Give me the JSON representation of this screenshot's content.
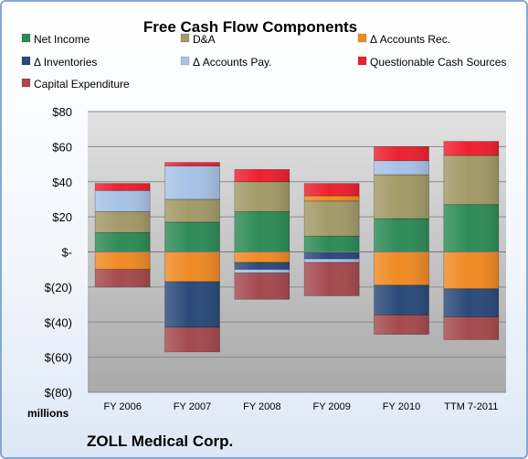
{
  "chart_data": {
    "type": "bar",
    "stacked": true,
    "title": "Free Cash Flow Components",
    "unit_label": "millions",
    "caption": "ZOLL Medical Corp.",
    "ylim": [
      -80,
      80
    ],
    "yticks": [
      {
        "value": 80,
        "label": "$80"
      },
      {
        "value": 60,
        "label": "$60"
      },
      {
        "value": 40,
        "label": "$40"
      },
      {
        "value": 20,
        "label": "$20"
      },
      {
        "value": 0,
        "label": "$-"
      },
      {
        "value": -20,
        "label": "$(20)"
      },
      {
        "value": -40,
        "label": "$(40)"
      },
      {
        "value": -60,
        "label": "$(60)"
      },
      {
        "value": -80,
        "label": "$(80)"
      }
    ],
    "grid": true,
    "legend_position": "top",
    "categories": [
      "FY 2006",
      "FY 2007",
      "FY 2008",
      "FY 2009",
      "FY 2010",
      "TTM 7-2011"
    ],
    "series": [
      {
        "name": "Net Income",
        "color": "#2e8b57",
        "values": [
          11,
          17,
          23,
          9,
          19,
          27
        ]
      },
      {
        "name": "D&A",
        "color": "#a39a68",
        "values": [
          12,
          13,
          17,
          20,
          25,
          28
        ]
      },
      {
        "name": "Δ Accounts Rec.",
        "color": "#f08a24",
        "values": [
          -10,
          -17,
          -6,
          3,
          -19,
          -21
        ]
      },
      {
        "name": "Δ Inventories",
        "color": "#2b4a7a",
        "values": [
          0,
          -26,
          -4,
          -4,
          -17,
          -16
        ]
      },
      {
        "name": "Δ Accounts Pay.",
        "color": "#a7c2e6",
        "values": [
          12,
          19,
          -2,
          -2,
          8,
          0
        ]
      },
      {
        "name": "Questionable Cash Sources",
        "color": "#ee2030",
        "values": [
          4,
          2,
          7,
          7,
          8,
          8
        ]
      },
      {
        "name": "Capital Expenditure",
        "color": "#a54a4e",
        "values": [
          -10,
          -14,
          -15,
          -19,
          -11,
          -13
        ]
      }
    ]
  }
}
